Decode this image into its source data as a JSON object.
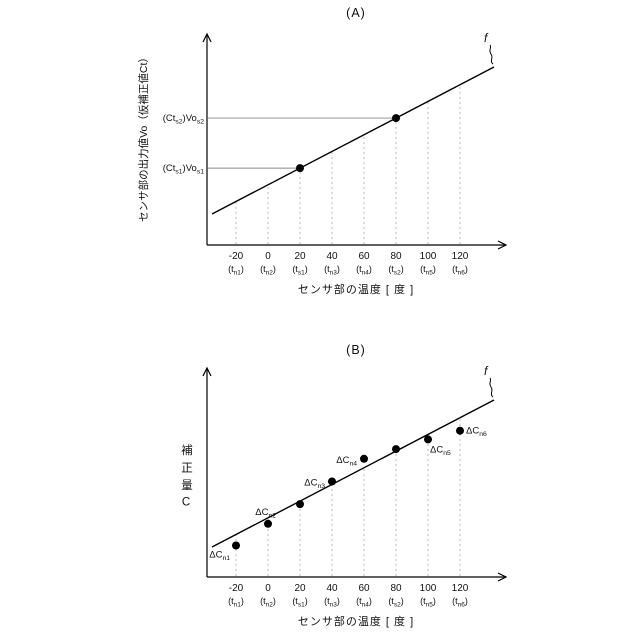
{
  "chart_data": [
    {
      "type": "line",
      "title": "(A)",
      "xlabel": "センサ部の温度 [ 度 ]",
      "ylabel": "センサ部の出力値Vo（仮補正値Ct）",
      "line_label": "f",
      "line": {
        "shape": "linear-increasing",
        "name": "f"
      },
      "x_tick_values": [
        -20,
        0,
        20,
        40,
        60,
        80,
        100,
        120
      ],
      "x_ticks": [
        {
          "num": "-20",
          "name": "t",
          "sub": "n1"
        },
        {
          "num": "0",
          "name": "t",
          "sub": "n2"
        },
        {
          "num": "20",
          "name": "t",
          "sub": "s1"
        },
        {
          "num": "40",
          "name": "t",
          "sub": "n3"
        },
        {
          "num": "60",
          "name": "t",
          "sub": "n4"
        },
        {
          "num": "80",
          "name": "t",
          "sub": "s2"
        },
        {
          "num": "100",
          "name": "t",
          "sub": "n5"
        },
        {
          "num": "120",
          "name": "t",
          "sub": "n6"
        }
      ],
      "marked_points": [
        {
          "x": "20",
          "y_label": [
            {
              "t": "(Ct"
            },
            {
              "t": "s1",
              "sub": true
            },
            {
              "t": ")Vo"
            },
            {
              "t": "s1",
              "sub": true
            }
          ]
        },
        {
          "x": "80",
          "y_label": [
            {
              "t": "(Ct"
            },
            {
              "t": "s2",
              "sub": true
            },
            {
              "t": ")Vo"
            },
            {
              "t": "s2",
              "sub": true
            }
          ]
        }
      ]
    },
    {
      "type": "scatter",
      "title": "(B)",
      "xlabel": "センサ部の温度 [ 度 ]",
      "ylabel": "補正量C",
      "line_label": "f",
      "line": {
        "shape": "linear-increasing",
        "name": "f"
      },
      "x_tick_values": [
        -20,
        0,
        20,
        40,
        60,
        80,
        100,
        120
      ],
      "x_ticks": [
        {
          "num": "-20",
          "name": "t",
          "sub": "n1"
        },
        {
          "num": "0",
          "name": "t",
          "sub": "n2"
        },
        {
          "num": "20",
          "name": "t",
          "sub": "s1"
        },
        {
          "num": "40",
          "name": "t",
          "sub": "n3"
        },
        {
          "num": "60",
          "name": "t",
          "sub": "n4"
        },
        {
          "num": "80",
          "name": "t",
          "sub": "s2"
        },
        {
          "num": "100",
          "name": "t",
          "sub": "n5"
        },
        {
          "num": "120",
          "name": "t",
          "sub": "n6"
        }
      ],
      "points": [
        {
          "x": "-20",
          "offset": 11,
          "label": [
            {
              "t": "ΔC"
            },
            {
              "t": "n1",
              "sub": true
            }
          ],
          "label_side": "below-left"
        },
        {
          "x": "0",
          "offset": 6,
          "label": [
            {
              "t": "ΔC"
            },
            {
              "t": "n2",
              "sub": true
            }
          ],
          "label_side": "above-left"
        },
        {
          "x": "20",
          "offset": 3
        },
        {
          "x": "40",
          "offset": -3,
          "label": [
            {
              "t": "ΔC"
            },
            {
              "t": "n3",
              "sub": true
            }
          ],
          "label_side": "left"
        },
        {
          "x": "60",
          "offset": -9,
          "label": [
            {
              "t": "ΔC"
            },
            {
              "t": "n4",
              "sub": true
            }
          ],
          "label_side": "left"
        },
        {
          "x": "80",
          "offset": -2
        },
        {
          "x": "100",
          "offset": 5,
          "label": [
            {
              "t": "ΔC"
            },
            {
              "t": "n5",
              "sub": true
            }
          ],
          "label_side": "below-right"
        },
        {
          "x": "120",
          "offset": 13,
          "label": [
            {
              "t": "ΔC"
            },
            {
              "t": "n6",
              "sub": true
            }
          ],
          "label_side": "right"
        }
      ]
    }
  ]
}
